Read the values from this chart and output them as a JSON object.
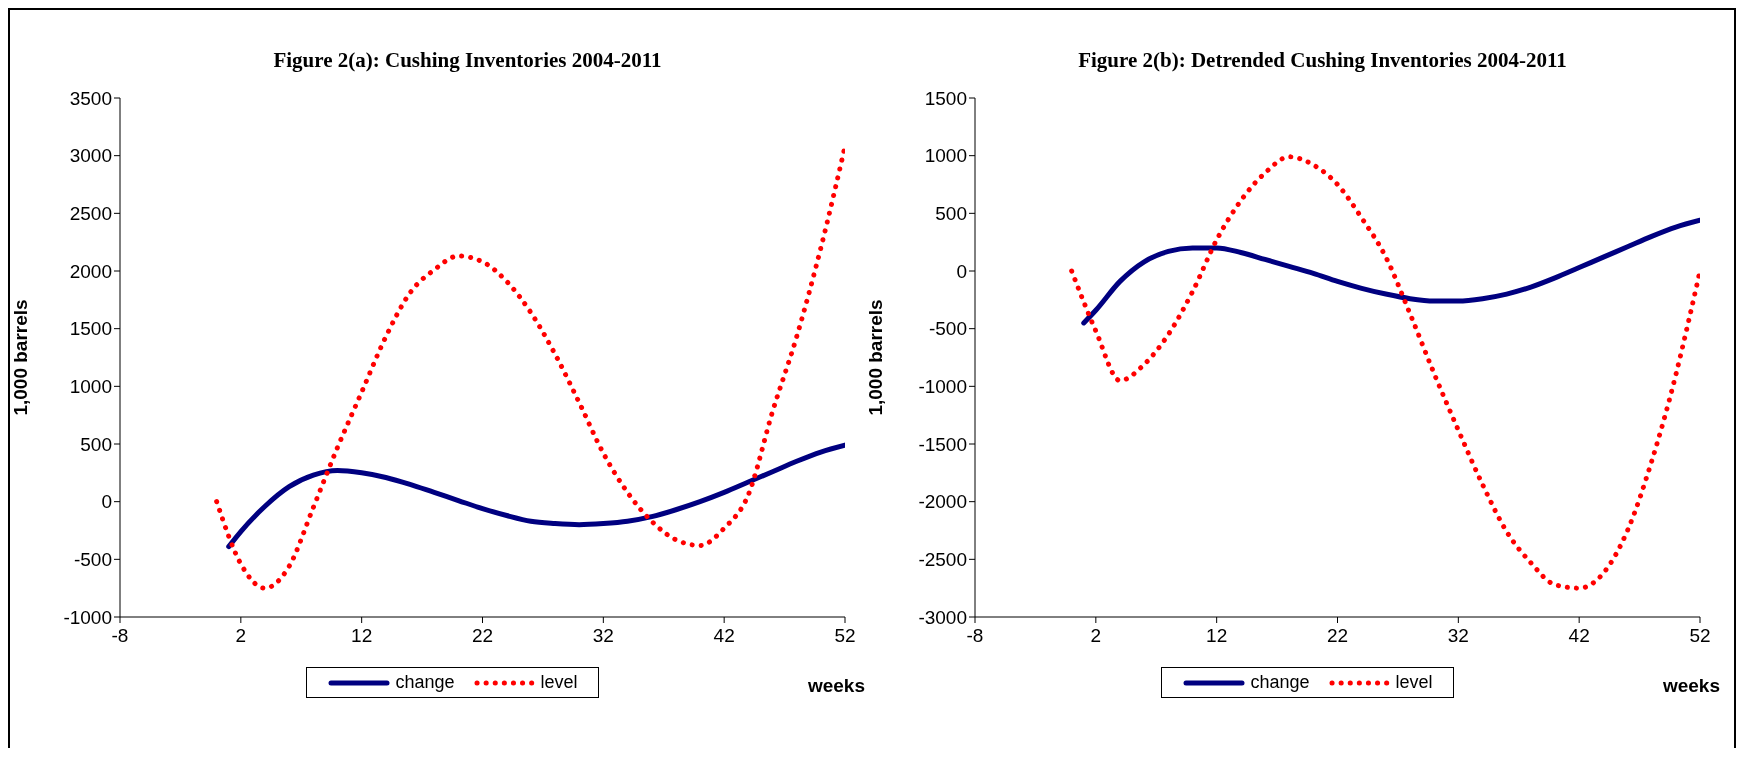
{
  "chart_data": [
    {
      "type": "line",
      "title": "Figure 2(a): Cushing Inventories 2004-2011",
      "xlabel": "weeks",
      "ylabel": "1,000 barrels",
      "xlim": [
        -8,
        52
      ],
      "xticks": [
        -8,
        2,
        12,
        22,
        32,
        42,
        52
      ],
      "ylim": [
        -1000,
        3500
      ],
      "yticks": [
        -1000,
        -500,
        0,
        500,
        1000,
        1500,
        2000,
        2500,
        3000,
        3500
      ],
      "grid": false,
      "legend": "bottom",
      "marker": "none",
      "series": [
        {
          "name": "change",
          "color": "#000080",
          "line_style": "solid",
          "x": [
            1,
            2,
            4,
            6,
            8,
            10,
            12,
            14,
            16,
            18,
            20,
            22,
            24,
            26,
            28,
            30,
            32,
            34,
            36,
            38,
            40,
            42,
            44,
            46,
            48,
            50,
            52
          ],
          "values": [
            -390,
            -260,
            -40,
            130,
            230,
            270,
            250,
            210,
            150,
            80,
            10,
            -60,
            -120,
            -170,
            -190,
            -200,
            -190,
            -170,
            -130,
            -70,
            0,
            80,
            170,
            260,
            350,
            430,
            490
          ]
        },
        {
          "name": "level",
          "color": "#ff0000",
          "line_style": "dotted",
          "x": [
            0,
            2,
            4,
            6,
            8,
            10,
            12,
            14,
            16,
            18,
            20,
            22,
            24,
            26,
            28,
            30,
            32,
            34,
            36,
            38,
            40,
            42,
            44,
            46,
            48,
            50,
            52
          ],
          "values": [
            0,
            -540,
            -750,
            -560,
            -50,
            470,
            950,
            1430,
            1810,
            2010,
            2130,
            2080,
            1910,
            1640,
            1280,
            860,
            420,
            80,
            -170,
            -330,
            -380,
            -230,
            60,
            780,
            1430,
            2200,
            3080
          ]
        }
      ]
    },
    {
      "type": "line",
      "title": "Figure 2(b): Detrended Cushing Inventories 2004-2011",
      "xlabel": "weeks",
      "ylabel": "1,000 barrels",
      "xlim": [
        -8,
        52
      ],
      "xticks": [
        -8,
        2,
        12,
        22,
        32,
        42,
        52
      ],
      "ylim": [
        -3000,
        1500
      ],
      "yticks": [
        -3000,
        -2500,
        -2000,
        -1500,
        -1000,
        -500,
        0,
        500,
        1000,
        1500
      ],
      "grid": false,
      "legend": "bottom",
      "marker": "none",
      "series": [
        {
          "name": "change",
          "color": "#000080",
          "line_style": "solid",
          "x": [
            1,
            2,
            4,
            6,
            8,
            10,
            12,
            14,
            16,
            18,
            20,
            22,
            24,
            26,
            28,
            30,
            32,
            34,
            36,
            38,
            40,
            42,
            44,
            46,
            48,
            50,
            52
          ],
          "values": [
            -450,
            -340,
            -90,
            80,
            170,
            200,
            200,
            160,
            100,
            40,
            -20,
            -90,
            -150,
            -200,
            -240,
            -260,
            -260,
            -240,
            -200,
            -140,
            -60,
            30,
            120,
            210,
            300,
            380,
            440
          ]
        },
        {
          "name": "level",
          "color": "#ff0000",
          "line_style": "dotted",
          "x": [
            0,
            2,
            4,
            6,
            8,
            10,
            12,
            14,
            16,
            18,
            20,
            22,
            24,
            26,
            28,
            30,
            32,
            34,
            36,
            38,
            40,
            42,
            44,
            46,
            48,
            50,
            51,
            52
          ],
          "values": [
            0,
            -520,
            -950,
            -810,
            -550,
            -180,
            270,
            610,
            850,
            990,
            920,
            750,
            460,
            120,
            -370,
            -890,
            -1380,
            -1850,
            -2260,
            -2530,
            -2720,
            -2750,
            -2620,
            -2250,
            -1650,
            -900,
            -460,
            0
          ]
        }
      ]
    }
  ]
}
